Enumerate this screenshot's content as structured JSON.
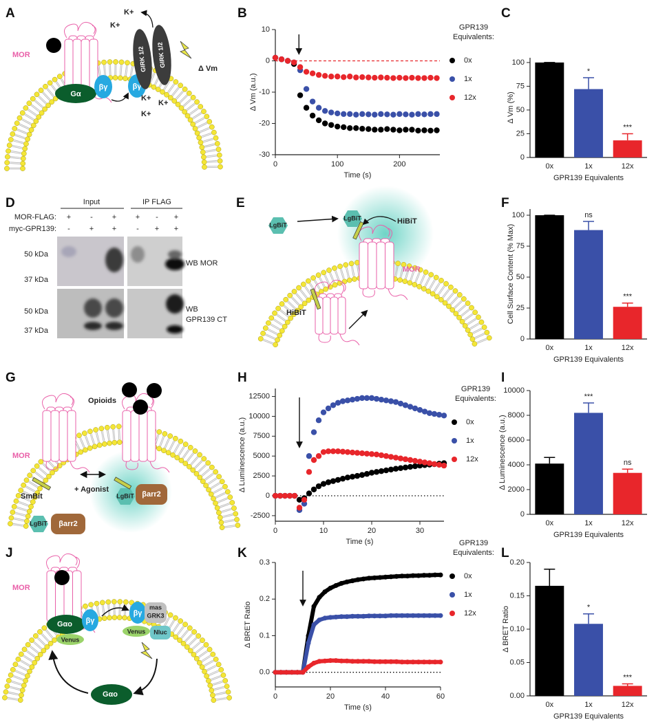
{
  "chart_data": [
    {
      "panel": "B",
      "type": "line",
      "ylabel": "Δ Vm (a.u.)",
      "xlabel": "Time (s)",
      "legend_title": [
        "GPR139",
        "Equivalents:"
      ],
      "x": [
        0,
        10,
        20,
        30,
        40,
        50,
        60,
        70,
        80,
        90,
        100,
        110,
        120,
        130,
        140,
        150,
        160,
        170,
        180,
        190,
        200,
        210,
        220,
        230,
        240,
        250,
        260
      ],
      "xlim": [
        0,
        265
      ],
      "ylim": [
        -30,
        10
      ],
      "xticks": [
        0,
        100,
        200
      ],
      "yticks": [
        -30,
        -20,
        -10,
        0,
        10
      ],
      "arrow_x": 38,
      "baseline": {
        "value": 0,
        "color": "#e8262b",
        "style": "dashed"
      },
      "series": [
        {
          "name": "0x",
          "color": "#000000",
          "values": [
            1,
            0.5,
            0,
            -1,
            -11,
            -15,
            -17.5,
            -19,
            -20,
            -20.5,
            -21,
            -21.2,
            -21.5,
            -21.5,
            -21.7,
            -21.8,
            -22,
            -22,
            -21.8,
            -22,
            -22.2,
            -22,
            -22,
            -22.3,
            -22.2,
            -22.3,
            -22.2
          ]
        },
        {
          "name": "1x",
          "color": "#3a50a8",
          "values": [
            1,
            0.5,
            0,
            -0.5,
            -3,
            -9,
            -13,
            -15,
            -16,
            -16.5,
            -16.8,
            -17,
            -17,
            -17.2,
            -17,
            -17.1,
            -17.2,
            -17,
            -17.1,
            -17.2,
            -17,
            -17.1,
            -17.2,
            -17,
            -17.1,
            -17,
            -17
          ]
        },
        {
          "name": "12x",
          "color": "#e8262b",
          "values": [
            1,
            0.5,
            0,
            -0.5,
            -2,
            -3.5,
            -4,
            -4.5,
            -4.8,
            -5,
            -5,
            -5.2,
            -5,
            -5.3,
            -5.2,
            -5.3,
            -5.4,
            -5.3,
            -5.4,
            -5.5,
            -5.4,
            -5.5,
            -5.4,
            -5.5,
            -5.5,
            -5.4,
            -5.5
          ]
        }
      ]
    },
    {
      "panel": "C",
      "type": "bar",
      "ylabel": "Δ Vm (%)",
      "xlabel": "GPR139 Equivalents",
      "categories": [
        "0x",
        "1x",
        "12x"
      ],
      "values": [
        100,
        72,
        18
      ],
      "errors": [
        0,
        12,
        7
      ],
      "annotations": [
        null,
        "*",
        "***"
      ],
      "colors": [
        "#000000",
        "#3a50a8",
        "#e8262b"
      ],
      "ylim": [
        0,
        105
      ],
      "yticks": [
        0,
        25,
        50,
        75,
        100
      ]
    },
    {
      "panel": "F",
      "type": "bar",
      "ylabel": "Cell Surface Content (% Max)",
      "xlabel": "GPR139 Equivalents",
      "categories": [
        "0x",
        "1x",
        "12x"
      ],
      "values": [
        100,
        88,
        26
      ],
      "errors": [
        0,
        7,
        3
      ],
      "annotations": [
        null,
        "ns",
        "***"
      ],
      "colors": [
        "#000000",
        "#3a50a8",
        "#e8262b"
      ],
      "ylim": [
        0,
        105
      ],
      "yticks": [
        0,
        25,
        50,
        75,
        100
      ]
    },
    {
      "panel": "H",
      "type": "line",
      "ylabel": "Δ Luminescence (a.u.)",
      "xlabel": "Time (s)",
      "legend_title": [
        "GPR139",
        "Equivalents:"
      ],
      "x": [
        0,
        1,
        2,
        3,
        4,
        5,
        6,
        7,
        8,
        9,
        10,
        11,
        12,
        13,
        14,
        15,
        16,
        17,
        18,
        19,
        20,
        21,
        22,
        23,
        24,
        25,
        26,
        27,
        28,
        29,
        30,
        31,
        32,
        33,
        34,
        35
      ],
      "xlim": [
        0,
        35
      ],
      "ylim": [
        -3200,
        13500
      ],
      "xticks": [
        0,
        10,
        20,
        30
      ],
      "yticks": [
        -2500,
        0,
        2500,
        5000,
        7500,
        10000,
        12500
      ],
      "arrow_x": 5,
      "baseline": {
        "value": 0,
        "color": "#000000",
        "style": "dotted"
      },
      "series": [
        {
          "name": "0x",
          "color": "#000000",
          "values": [
            0,
            0,
            0,
            0,
            0,
            -500,
            -300,
            300,
            800,
            1200,
            1500,
            1700,
            1850,
            2000,
            2150,
            2300,
            2400,
            2500,
            2620,
            2750,
            2900,
            3000,
            3100,
            3200,
            3300,
            3400,
            3480,
            3560,
            3640,
            3720,
            3800,
            3860,
            3920,
            3980,
            4040,
            4100
          ]
        },
        {
          "name": "1x",
          "color": "#3a50a8",
          "values": [
            0,
            0,
            0,
            0,
            0,
            -1800,
            -1000,
            5000,
            8000,
            9500,
            10500,
            11000,
            11400,
            11700,
            11900,
            12000,
            12100,
            12200,
            12300,
            12300,
            12300,
            12200,
            12100,
            12000,
            11900,
            11800,
            11600,
            11400,
            11200,
            11000,
            10800,
            10600,
            10400,
            10300,
            10200,
            10100
          ]
        },
        {
          "name": "12x",
          "color": "#e8262b",
          "values": [
            0,
            0,
            0,
            0,
            0,
            -1500,
            -500,
            3000,
            4500,
            5000,
            5500,
            5600,
            5600,
            5600,
            5550,
            5500,
            5450,
            5400,
            5350,
            5300,
            5250,
            5200,
            5100,
            5000,
            4900,
            4800,
            4700,
            4600,
            4500,
            4400,
            4300,
            4200,
            4100,
            4000,
            3900,
            3800
          ]
        }
      ]
    },
    {
      "panel": "I",
      "type": "bar",
      "ylabel": "Δ Luminescence (a.u.)",
      "xlabel": "GPR139 Equivalents",
      "categories": [
        "0x",
        "1x",
        "12x"
      ],
      "values": [
        4100,
        8200,
        3350
      ],
      "errors": [
        500,
        800,
        300
      ],
      "annotations": [
        null,
        "***",
        "ns"
      ],
      "colors": [
        "#000000",
        "#3a50a8",
        "#e8262b"
      ],
      "ylim": [
        0,
        10000
      ],
      "yticks": [
        0,
        2000,
        4000,
        6000,
        8000,
        10000
      ]
    },
    {
      "panel": "K",
      "type": "line",
      "ylabel": "Δ BRET Ratio",
      "xlabel": "Time (s)",
      "legend_title": [
        "GPR139",
        "Equivalents:"
      ],
      "x": [
        0,
        2,
        4,
        6,
        8,
        10,
        12,
        14,
        16,
        18,
        20,
        22,
        24,
        26,
        28,
        30,
        32,
        34,
        36,
        38,
        40,
        42,
        44,
        46,
        48,
        50,
        52,
        54,
        56,
        58,
        60
      ],
      "xlim": [
        0,
        60
      ],
      "ylim": [
        -0.04,
        0.3
      ],
      "xticks": [
        0,
        20,
        40,
        60
      ],
      "yticks": [
        {
          "value": 0,
          "label": "0.0"
        },
        0.1,
        0.2,
        0.3
      ],
      "arrow_x": 10,
      "baseline": {
        "value": 0,
        "color": "#000000",
        "style": "dotted"
      },
      "series": [
        {
          "name": "0x",
          "color": "#000000",
          "values": [
            0,
            0,
            0,
            0,
            0,
            0,
            0.1,
            0.18,
            0.205,
            0.22,
            0.23,
            0.237,
            0.243,
            0.247,
            0.25,
            0.253,
            0.255,
            0.257,
            0.258,
            0.259,
            0.26,
            0.261,
            0.262,
            0.263,
            0.263,
            0.264,
            0.264,
            0.265,
            0.265,
            0.266,
            0.266
          ]
        },
        {
          "name": "1x",
          "color": "#3a50a8",
          "values": [
            0,
            0,
            0,
            0,
            0,
            0,
            0.08,
            0.13,
            0.143,
            0.148,
            0.15,
            0.151,
            0.152,
            0.152,
            0.153,
            0.153,
            0.153,
            0.154,
            0.154,
            0.154,
            0.154,
            0.155,
            0.155,
            0.155,
            0.155,
            0.155,
            0.155,
            0.155,
            0.155,
            0.155,
            0.155
          ]
        },
        {
          "name": "12x",
          "color": "#e8262b",
          "values": [
            0,
            0,
            0,
            0,
            0,
            0,
            0.015,
            0.025,
            0.03,
            0.031,
            0.032,
            0.032,
            0.031,
            0.031,
            0.03,
            0.03,
            0.03,
            0.03,
            0.029,
            0.029,
            0.029,
            0.029,
            0.029,
            0.028,
            0.028,
            0.028,
            0.028,
            0.028,
            0.028,
            0.028,
            0.028
          ]
        }
      ]
    },
    {
      "panel": "L",
      "type": "bar",
      "ylabel": "Δ BRET Ratio",
      "xlabel": "GPR139 Equivalents",
      "categories": [
        "0x",
        "1x",
        "12x"
      ],
      "values": [
        0.165,
        0.108,
        0.015
      ],
      "errors": [
        0.025,
        0.015,
        0.003
      ],
      "annotations": [
        null,
        "*",
        "***"
      ],
      "colors": [
        "#000000",
        "#3a50a8",
        "#e8262b"
      ],
      "ylim": [
        0,
        0.2
      ],
      "yticks": [
        {
          "value": 0,
          "label": "0.00"
        },
        {
          "value": 0.05,
          "label": "0.05"
        },
        {
          "value": 0.1,
          "label": "0.10"
        },
        {
          "value": 0.15,
          "label": "0.15"
        },
        {
          "value": 0.2,
          "label": "0.20"
        }
      ]
    }
  ],
  "panel_A": {
    "panel": "A",
    "mor": "MOR",
    "g_alpha": "Gα",
    "beta_gamma": [
      "βγ",
      "βγ"
    ],
    "girk": [
      "GIRK 1/2",
      "GIRK 1/2"
    ],
    "k_ions": [
      "K+",
      "K+",
      "K+",
      "K+",
      "K+"
    ],
    "delta_vm": "Δ Vm"
  },
  "panel_D": {
    "panel": "D",
    "groups": [
      "Input",
      "IP FLAG"
    ],
    "rows": [
      {
        "label": "MOR-FLAG:",
        "signs": [
          "+",
          "-",
          "+",
          "+",
          "-",
          "+"
        ]
      },
      {
        "label": "myc-GPR139:",
        "signs": [
          "-",
          "+",
          "+",
          "-",
          "+",
          "+"
        ]
      }
    ],
    "markers": [
      "50 kDa",
      "37 kDa",
      "50 kDa",
      "37 kDa"
    ],
    "blots": [
      [
        "WB MOR"
      ],
      [
        "WB",
        "GPR139 CT"
      ]
    ]
  },
  "panel_E": {
    "panel": "E",
    "lgbit": [
      "LgBiT",
      "LgBiT"
    ],
    "hibit": [
      "HiBiT",
      "HiBiT"
    ],
    "mor": "MOR"
  },
  "panel_G": {
    "panel": "G",
    "opioids": "Opioids",
    "mor": "MOR",
    "smbit": "SmBit",
    "agonist": "+ Agonist",
    "lgbit": [
      "LgBiT",
      "LgBiT"
    ],
    "barr2": [
      "βarr2",
      "βarr2"
    ]
  },
  "panel_J": {
    "panel": "J",
    "mor": "MOR",
    "g_alpha_o": [
      "Gαo",
      "Gαo"
    ],
    "beta_gamma": [
      "βγ",
      "βγ"
    ],
    "venus": [
      "Venus",
      "Venus"
    ],
    "mas_grk3": [
      "mas",
      "GRK3"
    ],
    "nluc": "Nluc"
  }
}
